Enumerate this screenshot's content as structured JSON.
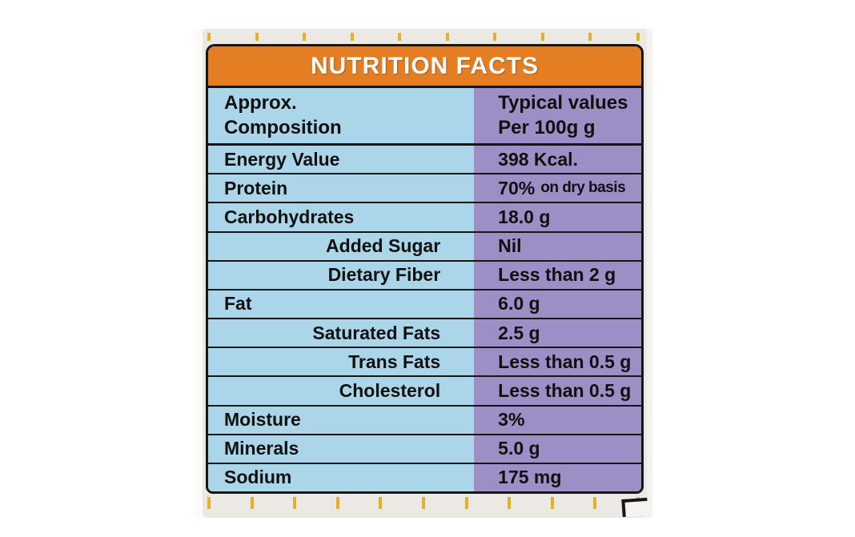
{
  "colors": {
    "page_background": "#ffffff",
    "label_background": "#ece9e5",
    "title_bar_orange": "#e57e22",
    "composition_column_blue": "#abd5e9",
    "values_column_purple": "#9d8ec5",
    "table_border": "#161616",
    "text": "#101010",
    "title_text": "#ffffff",
    "registration_mark_gold": "#e3b128"
  },
  "nutrition_label": {
    "title": "NUTRITION FACTS",
    "column_headers": {
      "composition_line1": "Approx.",
      "composition_line2": "Composition",
      "values_line1": "Typical values",
      "values_line2": "Per 100g g"
    },
    "rows": [
      {
        "name": "Energy Value",
        "value": "398 Kcal.",
        "value_suffix": "",
        "indent": false
      },
      {
        "name": "Protein",
        "value": "70%",
        "value_suffix": "on dry basis",
        "indent": false
      },
      {
        "name": "Carbohydrates",
        "value": "18.0 g",
        "value_suffix": "",
        "indent": false
      },
      {
        "name": "Added Sugar",
        "value": "Nil",
        "value_suffix": "",
        "indent": true
      },
      {
        "name": "Dietary Fiber",
        "value": "Less than 2 g",
        "value_suffix": "",
        "indent": true
      },
      {
        "name": "Fat",
        "value": "6.0 g",
        "value_suffix": "",
        "indent": false
      },
      {
        "name": "Saturated Fats",
        "value": "2.5 g",
        "value_suffix": "",
        "indent": true
      },
      {
        "name": "Trans Fats",
        "value": "Less than 0.5 g",
        "value_suffix": "",
        "indent": true
      },
      {
        "name": "Cholesterol",
        "value": "Less than 0.5 g",
        "value_suffix": "",
        "indent": true
      },
      {
        "name": "Moisture",
        "value": "3%",
        "value_suffix": "",
        "indent": false
      },
      {
        "name": "Minerals",
        "value": "5.0 g",
        "value_suffix": "",
        "indent": false
      },
      {
        "name": "Sodium",
        "value": "175 mg",
        "value_suffix": "",
        "indent": false
      }
    ],
    "registration_marks": {
      "top_count": 10,
      "bottom_count": 11
    }
  }
}
